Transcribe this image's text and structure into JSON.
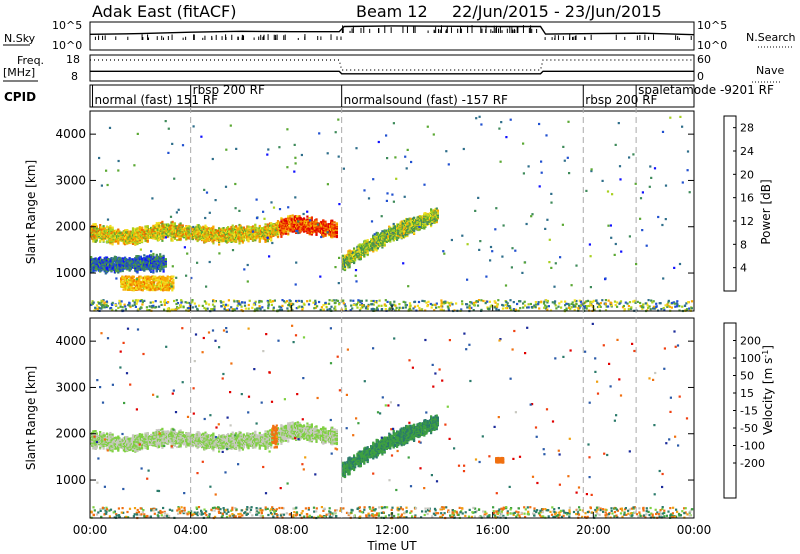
{
  "header": {
    "station": "Adak East (fitACF)",
    "beam": "Beam 12",
    "date_range": "22/Jun/2015 - 23/Jun/2015"
  },
  "panels": {
    "nsky_label": "N.Sky",
    "nsearch_label": "N.Search",
    "freq_label_1": "Freq.",
    "freq_label_2": "[MHz]",
    "nave_label": "Nave",
    "cpid_label": "CPID",
    "nsky_ticks": [
      "10^5",
      "10^0"
    ],
    "nsearch_ticks": [
      "10^5",
      "10^0"
    ],
    "freq_ticks": [
      "18",
      "8"
    ],
    "nave_ticks": [
      "60",
      "0"
    ]
  },
  "cpid_modes": [
    {
      "label": "normal (fast) 151 RF",
      "start_h": 0.1
    },
    {
      "label": "rbsp 200 RF",
      "start_h": 4.0
    },
    {
      "label": "normalsound (fast) -157 RF",
      "start_h": 10.0
    },
    {
      "label": "rbsp 200 RF",
      "start_h": 19.6
    },
    {
      "label": "spaletamode -9201 RF",
      "start_h": 21.7
    }
  ],
  "power_panel": {
    "ylabel": "Slant Range [km]",
    "yticks": [
      "1000",
      "2000",
      "3000",
      "4000"
    ],
    "colorbar_label": "Power [dB]",
    "colorbar_ticks": [
      "4",
      "8",
      "12",
      "16",
      "20",
      "24",
      "28"
    ],
    "colors": [
      "#1010ff",
      "#2050d0",
      "#2e6e8a",
      "#3e8a5a",
      "#5aa832",
      "#a8d020",
      "#f0e020",
      "#f8a800",
      "#f07000",
      "#f03000",
      "#e00000"
    ]
  },
  "velocity_panel": {
    "ylabel": "Slant Range [km]",
    "yticks": [
      "1000",
      "2000",
      "3000",
      "4000"
    ],
    "colorbar_label": "Velocity [m s^-1]",
    "colorbar_ticks": [
      "200",
      "100",
      "50",
      "15",
      "-15",
      "-50",
      "-100",
      "-200"
    ],
    "colors": [
      "#1a2a9a",
      "#2a5aa8",
      "#2a7a6a",
      "#3ea040",
      "#7ed040",
      "#c8c8c0",
      "#f0a010",
      "#f07010",
      "#f04010",
      "#e00000"
    ]
  },
  "xaxis": {
    "label": "Time UT",
    "ticks": [
      "00:00",
      "04:00",
      "08:00",
      "12:00",
      "16:00",
      "20:00",
      "00:00"
    ]
  },
  "chart_data": [
    {
      "type": "line",
      "title": "Adak East (fitACF) Beam 12 22/Jun/2015 - 23/Jun/2015",
      "series": [
        {
          "name": "N.Sky",
          "x": [
            0,
            2,
            4,
            6,
            8,
            9.9,
            10.1,
            12,
            14,
            16,
            17.9,
            18.1,
            20,
            22,
            24
          ],
          "y": [
            700,
            1000,
            2000,
            3000,
            2500,
            2500,
            30000,
            40000,
            35000,
            30000,
            30000,
            800,
            1000,
            1200,
            600
          ]
        },
        {
          "name": "Freq.",
          "x": [
            0,
            9.9,
            10.0,
            17.9,
            18.0,
            24
          ],
          "y": [
            11.5,
            11.5,
            10.5,
            10.5,
            11.5,
            11.5
          ]
        },
        {
          "name": "Nave",
          "x": [
            0,
            9.9,
            10.0,
            17.9,
            18.0,
            24
          ],
          "y": [
            48,
            48,
            24,
            24,
            48,
            48
          ]
        }
      ],
      "xlabel": "Time UT",
      "xlim": [
        0,
        24
      ]
    },
    {
      "type": "heatmap",
      "ylabel": "Slant Range [km]",
      "ylim": [
        180,
        4500
      ],
      "xlabel": "Time UT",
      "xlim": [
        0,
        24
      ],
      "colorbar": "Power [dB]",
      "clim": [
        0,
        30
      ],
      "features": [
        {
          "desc": "band",
          "t": [
            0,
            1.5,
            3,
            5,
            7,
            8,
            9.8
          ],
          "r": [
            1900,
            1800,
            1950,
            1850,
            1900,
            2100,
            1950
          ],
          "dB": 18
        },
        {
          "desc": "band",
          "t": [
            10,
            11,
            12,
            13,
            13.8
          ],
          "r": [
            1250,
            1600,
            1900,
            2100,
            2300
          ],
          "dB": 14
        },
        {
          "desc": "patch",
          "t": [
            1.2,
            3.3
          ],
          "r": [
            650,
            950
          ],
          "dB": 20
        },
        {
          "desc": "band",
          "t": [
            0,
            3
          ],
          "r": [
            1200,
            1250
          ],
          "dB": 6
        }
      ]
    },
    {
      "type": "heatmap",
      "ylabel": "Slant Range [km]",
      "ylim": [
        180,
        4500
      ],
      "xlabel": "Time UT",
      "xlim": [
        0,
        24
      ],
      "colorbar": "Velocity [m s^-1]",
      "clim": [
        -250,
        250
      ],
      "features": [
        {
          "desc": "band",
          "t": [
            0,
            1.5,
            3,
            5,
            7,
            8,
            9.8
          ],
          "r": [
            1900,
            1800,
            1950,
            1850,
            1900,
            2100,
            1950
          ],
          "v": 0
        },
        {
          "desc": "band",
          "t": [
            10,
            11,
            12,
            13,
            13.8
          ],
          "r": [
            1250,
            1600,
            1900,
            2100,
            2300
          ],
          "v": 30
        },
        {
          "desc": "patch",
          "t": [
            7.2,
            7.4
          ],
          "r": [
            1700,
            2200
          ],
          "v": -40
        },
        {
          "desc": "patch",
          "t": [
            16.1,
            16.4
          ],
          "r": [
            1400,
            1500
          ],
          "v": -50
        }
      ]
    }
  ]
}
